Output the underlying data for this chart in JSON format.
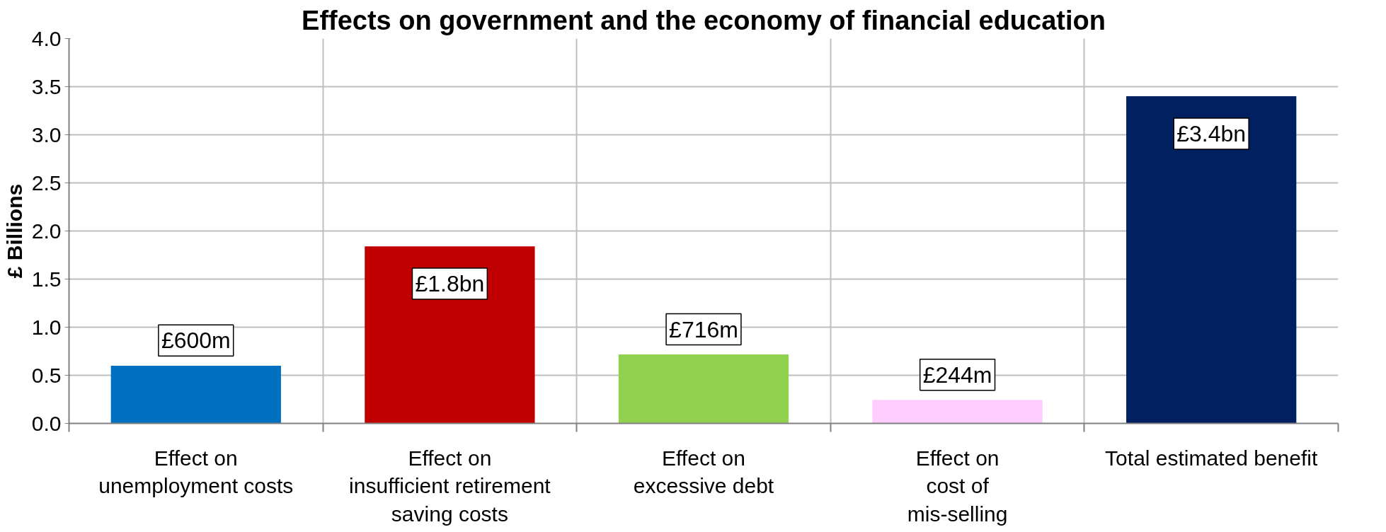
{
  "chart_data": {
    "type": "bar",
    "title": "Effects on government and the economy of financial education",
    "ylabel": "£ Billions",
    "categories": [
      "Effect on\nunemployment costs",
      "Effect on\ninsufficient retirement\nsaving costs",
      "Effect on\nexcessive debt",
      "Effect on\ncost of\nmis-selling",
      "Total estimated benefit"
    ],
    "values": [
      0.6,
      1.84,
      0.716,
      0.244,
      3.4
    ],
    "colors": [
      "#0070c0",
      "#c00000",
      "#92d050",
      "#ffccff",
      "#002060"
    ],
    "annotations": [
      {
        "text": "£600m",
        "x": "Effect on\nunemployment costs",
        "y": 0.6
      },
      {
        "text": "£1.8bn",
        "x": "Effect on\ninsufficient retirement\nsaving costs",
        "y": 1.84
      },
      {
        "text": "£716m",
        "x": "Effect on\nexcessive debt",
        "y": 0.716
      },
      {
        "text": "£244m",
        "x": "Effect on\ncost of\nmis-selling",
        "y": 0.244
      },
      {
        "text": "£3.4bn",
        "x": "Total estimated benefit",
        "y": 3.4
      }
    ],
    "ylim": [
      0,
      4
    ],
    "yticks": [
      {
        "value": 0,
        "label": "0.0"
      },
      {
        "value": 0.5,
        "label": "0.5"
      },
      {
        "value": 1,
        "label": "1.0"
      },
      {
        "value": 1.5,
        "label": "1.5"
      },
      {
        "value": 2,
        "label": "2.0"
      },
      {
        "value": 2.5,
        "label": "2.5"
      },
      {
        "value": 3,
        "label": "3.0"
      },
      {
        "value": 3.5,
        "label": "3.5"
      },
      {
        "value": 4,
        "label": "4.0"
      }
    ],
    "grid": true
  }
}
